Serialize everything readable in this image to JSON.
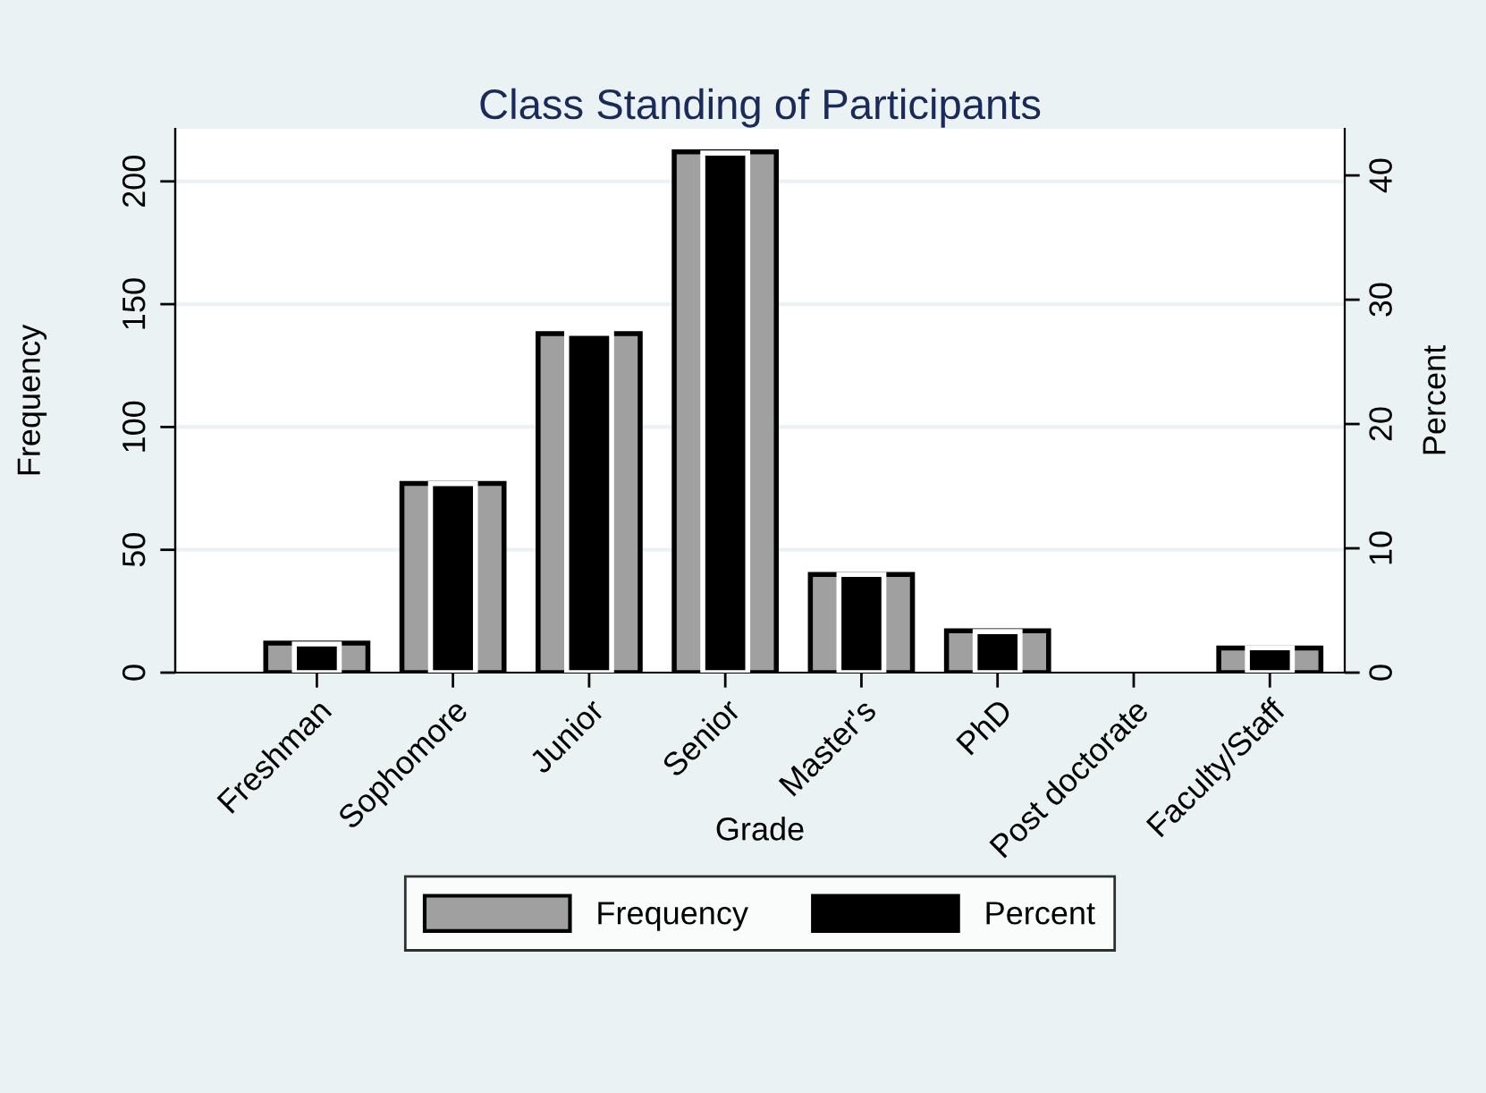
{
  "chart_data": {
    "type": "bar",
    "title": "Class Standing of Participants",
    "xlabel": "Grade",
    "ylabel": "Frequency",
    "y2label": "Percent",
    "categories": [
      "Freshman",
      "Sophomore",
      "Junior",
      "Senior",
      "Master's",
      "PhD",
      "Post doctorate",
      "Faculty/Staff"
    ],
    "series": [
      {
        "name": "Frequency",
        "color": "#a0a0a0",
        "values": [
          12,
          77,
          138,
          212,
          40,
          17,
          0,
          10
        ]
      },
      {
        "name": "Percent",
        "color": "#000000",
        "axis": "y2",
        "values": [
          2.3,
          15.2,
          27.3,
          41.8,
          7.9,
          3.3,
          0,
          2.0
        ]
      }
    ],
    "ylim": [
      0,
      221.4
    ],
    "yticks": [
      0,
      50,
      100,
      150,
      200
    ],
    "y2lim": [
      0,
      43.75
    ],
    "y2ticks": [
      0,
      10,
      20,
      30,
      40
    ],
    "grid": "y",
    "legend": "bottom"
  }
}
